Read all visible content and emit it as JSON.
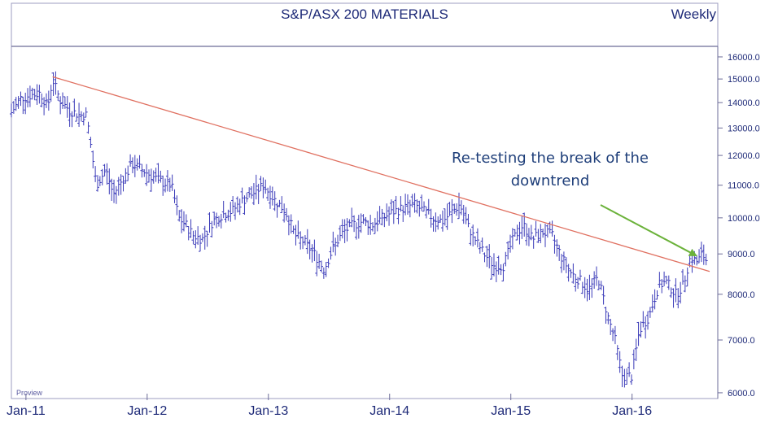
{
  "chart_data": {
    "type": "line",
    "style": "ohlc-bars",
    "title": "S&P/ASX 200 MATERIALS",
    "period": "Weekly",
    "watermark": "Proview",
    "y_scale": "log",
    "ylim": [
      5900,
      16500
    ],
    "y_ticks": [
      "16000.0",
      "15000.0",
      "14000.0",
      "13000.0",
      "12000.0",
      "11000.0",
      "10000.0",
      "9000.0",
      "8000.0",
      "7000.0",
      "6000.0"
    ],
    "y_tick_values": [
      16000,
      15000,
      14000,
      13000,
      12000,
      11000,
      10000,
      9000,
      8000,
      7000,
      6000
    ],
    "x_ticks": [
      "Jan-11",
      "Jan-12",
      "Jan-13",
      "Jan-14",
      "Jan-15",
      "Jan-16"
    ],
    "xlim": [
      2010.88,
      2016.64
    ],
    "grid": false,
    "series": [
      {
        "values": [
          [
            2010.88,
            13600
          ],
          [
            2010.96,
            14200
          ],
          [
            2011.04,
            14300
          ],
          [
            2011.12,
            14400
          ],
          [
            2011.18,
            13800
          ],
          [
            2011.22,
            15000
          ],
          [
            2011.28,
            14100
          ],
          [
            2011.36,
            13700
          ],
          [
            2011.44,
            13500
          ],
          [
            2011.5,
            13500
          ],
          [
            2011.54,
            12200
          ],
          [
            2011.58,
            11000
          ],
          [
            2011.66,
            11500
          ],
          [
            2011.72,
            10700
          ],
          [
            2011.8,
            11200
          ],
          [
            2011.88,
            11700
          ],
          [
            2011.96,
            11500
          ],
          [
            2012.04,
            11300
          ],
          [
            2012.12,
            11100
          ],
          [
            2012.2,
            11000
          ],
          [
            2012.26,
            10000
          ],
          [
            2012.32,
            9800
          ],
          [
            2012.38,
            9500
          ],
          [
            2012.46,
            9400
          ],
          [
            2012.54,
            9900
          ],
          [
            2012.62,
            10100
          ],
          [
            2012.7,
            10200
          ],
          [
            2012.78,
            10500
          ],
          [
            2012.86,
            10700
          ],
          [
            2012.96,
            11000
          ],
          [
            2013.06,
            10500
          ],
          [
            2013.14,
            10200
          ],
          [
            2013.22,
            9500
          ],
          [
            2013.3,
            9300
          ],
          [
            2013.38,
            9000
          ],
          [
            2013.46,
            8600
          ],
          [
            2013.54,
            9200
          ],
          [
            2013.62,
            9600
          ],
          [
            2013.7,
            9800
          ],
          [
            2013.78,
            9900
          ],
          [
            2013.86,
            9800
          ],
          [
            2013.94,
            10000
          ],
          [
            2014.04,
            10200
          ],
          [
            2014.12,
            10300
          ],
          [
            2014.2,
            10400
          ],
          [
            2014.28,
            10200
          ],
          [
            2014.36,
            10000
          ],
          [
            2014.44,
            9900
          ],
          [
            2014.52,
            10200
          ],
          [
            2014.58,
            10400
          ],
          [
            2014.64,
            9800
          ],
          [
            2014.72,
            9300
          ],
          [
            2014.78,
            9000
          ],
          [
            2014.86,
            8700
          ],
          [
            2014.94,
            8700
          ],
          [
            2015.02,
            9400
          ],
          [
            2015.1,
            9800
          ],
          [
            2015.18,
            9400
          ],
          [
            2015.26,
            9600
          ],
          [
            2015.34,
            9500
          ],
          [
            2015.42,
            8900
          ],
          [
            2015.5,
            8500
          ],
          [
            2015.58,
            8300
          ],
          [
            2015.64,
            8100
          ],
          [
            2015.72,
            8400
          ],
          [
            2015.8,
            7500
          ],
          [
            2015.86,
            7000
          ],
          [
            2015.92,
            6300
          ],
          [
            2016.0,
            6300
          ],
          [
            2016.06,
            7200
          ],
          [
            2016.14,
            7500
          ],
          [
            2016.22,
            8200
          ],
          [
            2016.28,
            8300
          ],
          [
            2016.36,
            8000
          ],
          [
            2016.42,
            8200
          ],
          [
            2016.48,
            8900
          ],
          [
            2016.54,
            8800
          ],
          [
            2016.58,
            9000
          ],
          [
            2016.62,
            8800
          ]
        ]
      }
    ],
    "trendline": {
      "from": [
        2011.22,
        15100
      ],
      "to": [
        2016.64,
        8550
      ]
    },
    "annotation": {
      "lines": [
        "Re-testing the break of the",
        "downtrend"
      ],
      "points_to": [
        2016.54,
        8750
      ]
    }
  }
}
